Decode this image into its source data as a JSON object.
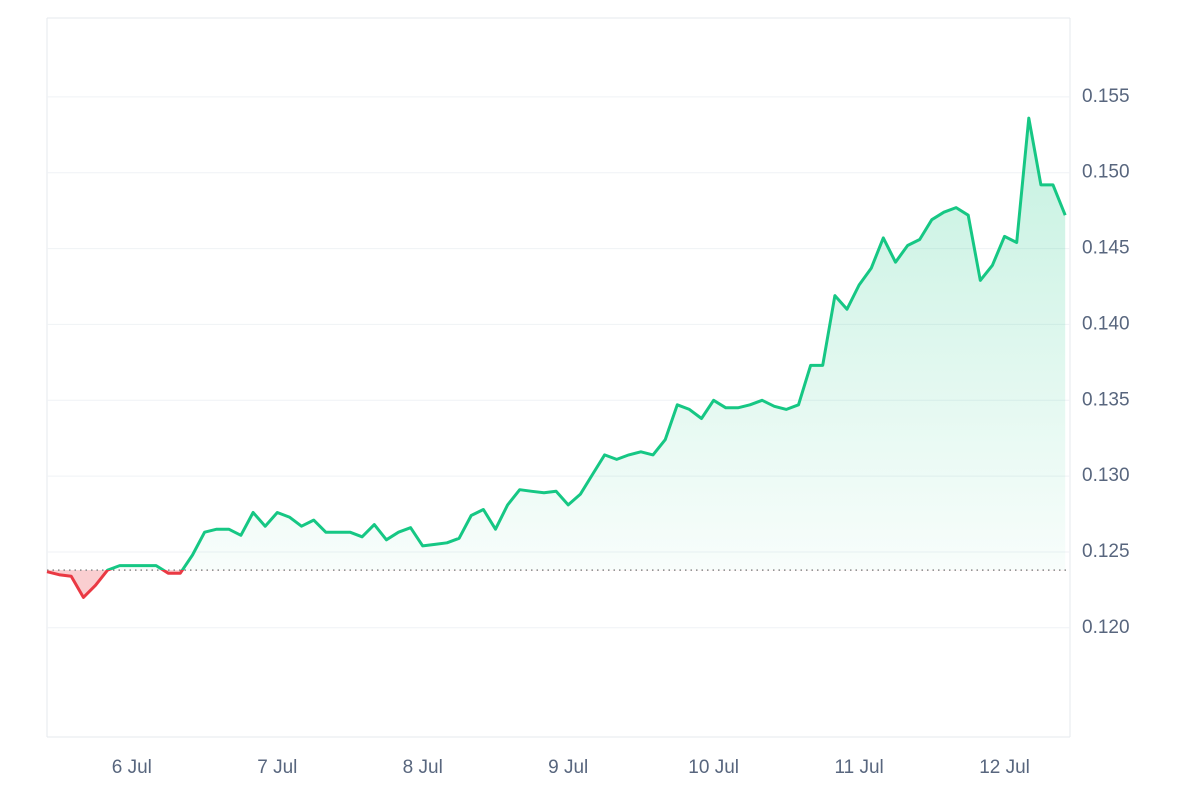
{
  "chart_data": {
    "type": "line",
    "baseline": 0.1238,
    "up_color": "#16c784",
    "down_color": "#ea3943",
    "grid": true,
    "ylim": [
      0.1128,
      0.1602
    ],
    "yticks": [
      {
        "value": 0.12,
        "label": "0.120"
      },
      0.125,
      {
        "value": 0.13,
        "label": "0.130"
      },
      0.135,
      {
        "value": 0.14,
        "label": "0.140"
      },
      0.145,
      {
        "value": 0.15,
        "label": "0.150"
      },
      0.155
    ],
    "xlim": [
      0,
      84.4
    ],
    "xticks": [
      {
        "value": 7,
        "label": "6 Jul"
      },
      {
        "value": 19,
        "label": "7 Jul"
      },
      {
        "value": 31,
        "label": "8 Jul"
      },
      {
        "value": 43,
        "label": "9 Jul"
      },
      {
        "value": 55,
        "label": "10 Jul"
      },
      {
        "value": 67,
        "label": "11 Jul"
      },
      {
        "value": 79,
        "label": "12 Jul"
      }
    ],
    "values": [
      0.1237,
      0.1235,
      0.1234,
      0.122,
      0.1228,
      0.1238,
      0.1241,
      0.1241,
      0.1241,
      0.1241,
      0.1236,
      0.1236,
      0.1248,
      0.1263,
      0.1265,
      0.1265,
      0.1261,
      0.1276,
      0.1267,
      0.1276,
      0.1273,
      0.1267,
      0.1271,
      0.1263,
      0.1263,
      0.1263,
      0.126,
      0.1268,
      0.1258,
      0.1263,
      0.1266,
      0.1254,
      0.1255,
      0.1256,
      0.1259,
      0.1274,
      0.1278,
      0.1265,
      0.1281,
      0.1291,
      0.129,
      0.1289,
      0.129,
      0.1281,
      0.1288,
      0.1301,
      0.1314,
      0.1311,
      0.1314,
      0.1316,
      0.1314,
      0.1324,
      0.1347,
      0.1344,
      0.1338,
      0.135,
      0.1345,
      0.1345,
      0.1347,
      0.135,
      0.1346,
      0.1344,
      0.1347,
      0.1373,
      0.1373,
      0.1419,
      0.141,
      0.1426,
      0.1437,
      0.1457,
      0.1441,
      0.1452,
      0.1456,
      0.1469,
      0.1474,
      0.1477,
      0.1472,
      0.1429,
      0.1439,
      0.1458,
      0.1454,
      0.1536,
      0.1492,
      0.1492,
      0.1472
    ]
  }
}
